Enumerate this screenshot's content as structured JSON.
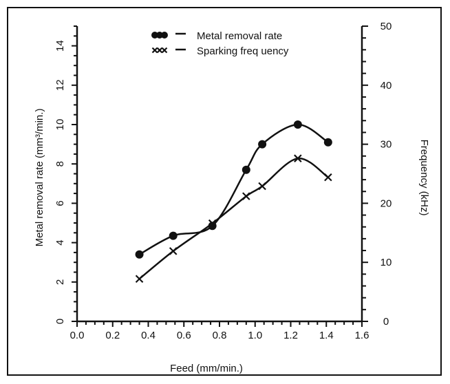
{
  "chart_data": {
    "type": "line",
    "title": "",
    "xlabel": "Feed (mm/min.)",
    "ylabel": "Metal removal rate (mm³/min.)",
    "y2label": "Frequency (kHz)",
    "xlim": [
      0.0,
      1.6
    ],
    "ylim": [
      0,
      15
    ],
    "y2lim": [
      0,
      50
    ],
    "x_ticks": [
      "0.0",
      "0.2",
      "0.4",
      "0.6",
      "0.8",
      "1.0",
      "1.2",
      "1.4",
      "1.6"
    ],
    "y_ticks": [
      "0",
      "2",
      "4",
      "6",
      "8",
      "10",
      "12",
      "14"
    ],
    "y2_ticks": [
      "0",
      "10",
      "20",
      "30",
      "40",
      "50"
    ],
    "grid": false,
    "legend_position": "top-center",
    "series": [
      {
        "name": "Metal removal rate",
        "axis": "left",
        "marker": "circle",
        "x": [
          0.35,
          0.54,
          0.76,
          0.95,
          1.04,
          1.24,
          1.41
        ],
        "y": [
          3.4,
          4.35,
          4.85,
          7.7,
          9.0,
          10.0,
          9.1
        ]
      },
      {
        "name": "Sparking freq uency",
        "axis": "right",
        "marker": "x",
        "x": [
          0.35,
          0.54,
          0.76,
          0.95,
          1.04,
          1.24,
          1.41
        ],
        "y": [
          7.2,
          11.9,
          16.6,
          21.2,
          22.9,
          27.6,
          24.4
        ]
      }
    ]
  },
  "colors": {
    "ink": "#111111",
    "background": "#ffffff"
  }
}
